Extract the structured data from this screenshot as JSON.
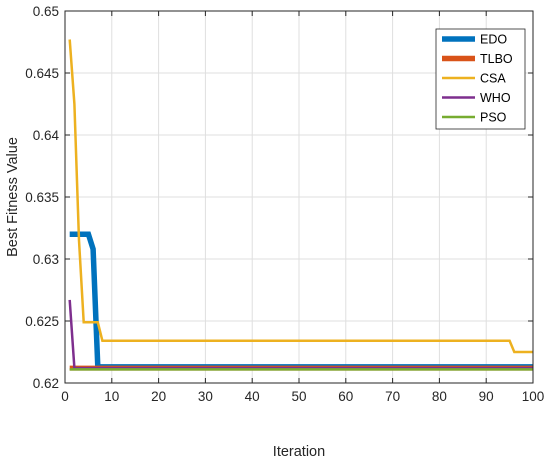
{
  "chart_data": {
    "type": "line",
    "title": "",
    "xlabel": "Iteration",
    "ylabel": "Best Fitness Value",
    "xlim": [
      0,
      100
    ],
    "ylim": [
      0.62,
      0.65
    ],
    "xticks": [
      "0",
      "10",
      "20",
      "30",
      "40",
      "50",
      "60",
      "70",
      "80",
      "90",
      "100"
    ],
    "yticks": [
      "0.62",
      "0.625",
      "0.63",
      "0.635",
      "0.64",
      "0.645",
      "0.65"
    ],
    "grid": true,
    "legend_position": "top-right",
    "series": [
      {
        "name": "EDO",
        "color": "#0072BD",
        "points": [
          [
            1,
            0.632
          ],
          [
            5,
            0.632
          ],
          [
            6,
            0.6308
          ],
          [
            7,
            0.6213
          ],
          [
            100,
            0.6213
          ]
        ]
      },
      {
        "name": "TLBO",
        "color": "#D95319",
        "points": [
          [
            1,
            0.6212
          ],
          [
            100,
            0.6212
          ]
        ]
      },
      {
        "name": "CSA",
        "color": "#EDB120",
        "points": [
          [
            1,
            0.6477
          ],
          [
            2,
            0.6425
          ],
          [
            3,
            0.6315
          ],
          [
            4,
            0.6249
          ],
          [
            7,
            0.6249
          ],
          [
            8,
            0.6234
          ],
          [
            95,
            0.6234
          ],
          [
            96,
            0.6225
          ],
          [
            100,
            0.6225
          ]
        ]
      },
      {
        "name": "WHO",
        "color": "#7E2F8E",
        "points": [
          [
            1,
            0.6267
          ],
          [
            2,
            0.6212
          ],
          [
            100,
            0.6212
          ]
        ]
      },
      {
        "name": "PSO",
        "color": "#77AC30",
        "points": [
          [
            1,
            0.6211
          ],
          [
            100,
            0.6211
          ]
        ]
      }
    ]
  }
}
